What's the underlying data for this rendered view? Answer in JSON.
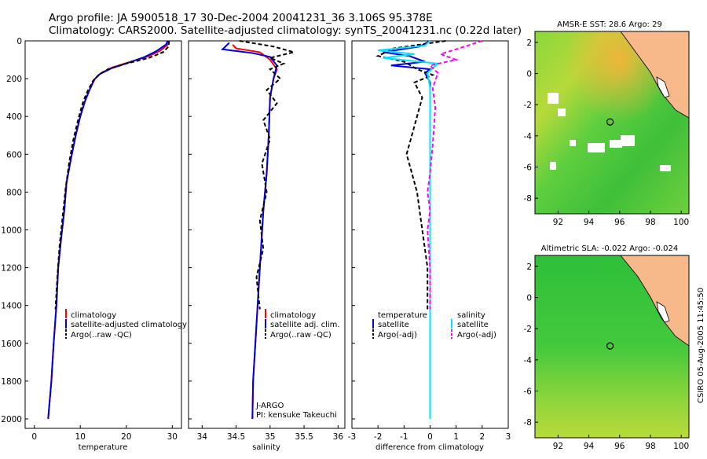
{
  "header": {
    "title_line1": "Argo profile: JA 5900518_17 30-Dec-2004 20041231_36 3.106S 95.378E",
    "title_line2": "Climatology: CARS2000. Satellite-adjusted climatology: synTS_20041231.nc (0.22d later)"
  },
  "depth_axis": {
    "ticks": [
      "0",
      "200",
      "400",
      "600",
      "800",
      "1000",
      "1200",
      "1400",
      "1600",
      "1800",
      "2000"
    ],
    "range": [
      0,
      2050
    ]
  },
  "panels": {
    "temperature": {
      "xlabel": "temperature",
      "xticks": [
        "0",
        "10",
        "20",
        "30"
      ],
      "legend": [
        "climatology",
        "satellite-adjusted climatology",
        "Argo(..raw -QC)"
      ]
    },
    "salinity": {
      "xlabel": "salinity",
      "xticks": [
        "34",
        "34.5",
        "35",
        "35.5",
        "36"
      ],
      "legend": [
        "climatology",
        "satellite adj. clim.",
        "Argo(..raw -QC)"
      ],
      "note1": "J-ARGO",
      "note2": "PI: kensuke Takeuchi"
    },
    "difference": {
      "xlabel": "difference from climatology",
      "xticks": [
        "-3",
        "-2",
        "-1",
        "0",
        "1",
        "2",
        "3"
      ],
      "legend_left_title": "temperature",
      "legend_left": [
        "satellite",
        "Argo(-adj)"
      ],
      "legend_right_title": "salinity",
      "legend_right": [
        "satellite",
        "Argo(-adj)"
      ]
    }
  },
  "maps": {
    "sst": {
      "title": "AMSR-E SST: 28.6 Argo: 29",
      "yticks": [
        "2",
        "0",
        "-2",
        "-4",
        "-6",
        "-8"
      ],
      "xticks": [
        "92",
        "94",
        "96",
        "98",
        "100"
      ]
    },
    "sla": {
      "title": "Altimetric SLA: -0.022 Argo: -0.024",
      "yticks": [
        "2",
        "0",
        "-2",
        "-4",
        "-6",
        "-8"
      ],
      "xticks": [
        "92",
        "94",
        "96",
        "98",
        "100"
      ]
    },
    "float_position": {
      "lon": 95.378,
      "lat": -3.106
    }
  },
  "footer": {
    "stamp": "CSIRO 05-Aug-2005 11:45:50"
  },
  "colors": {
    "climatology": "#ff0000",
    "satellite": "#0000dd",
    "argo": "#000000",
    "sal_satellite": "#00e5ff",
    "sal_argo": "#ff00ff",
    "land": "#f7b98a"
  },
  "chart_data": [
    {
      "type": "line",
      "panel": "temperature",
      "xlabel": "temperature",
      "xlim": [
        -2,
        32
      ],
      "ylim": [
        2050,
        0
      ],
      "series": [
        {
          "name": "climatology",
          "points": [
            [
              29.2,
              0
            ],
            [
              29.0,
              20
            ],
            [
              27.5,
              50
            ],
            [
              25,
              80
            ],
            [
              21,
              110
            ],
            [
              17,
              140
            ],
            [
              14.5,
              170
            ],
            [
              13.2,
              200
            ],
            [
              12,
              260
            ],
            [
              11,
              320
            ],
            [
              10,
              400
            ],
            [
              9,
              500
            ],
            [
              8,
              620
            ],
            [
              7,
              750
            ],
            [
              6.5,
              900
            ],
            [
              5.8,
              1050
            ],
            [
              5.2,
              1200
            ],
            [
              4.8,
              1400
            ],
            [
              4.2,
              1600
            ],
            [
              3.7,
              1800
            ],
            [
              3.0,
              2000
            ]
          ]
        },
        {
          "name": "satellite-adjusted climatology",
          "points": [
            [
              29.0,
              0
            ],
            [
              28.6,
              20
            ],
            [
              26.5,
              55
            ],
            [
              24,
              85
            ],
            [
              20.5,
              115
            ],
            [
              16.8,
              145
            ],
            [
              14.3,
              175
            ],
            [
              13.0,
              205
            ],
            [
              12,
              260
            ],
            [
              11,
              320
            ],
            [
              10,
              400
            ],
            [
              9,
              500
            ],
            [
              8,
              620
            ],
            [
              7,
              750
            ],
            [
              6.5,
              900
            ],
            [
              5.8,
              1050
            ],
            [
              5.2,
              1200
            ],
            [
              4.8,
              1400
            ],
            [
              4.2,
              1600
            ],
            [
              3.7,
              1800
            ],
            [
              3.0,
              2000
            ]
          ]
        },
        {
          "name": "Argo(..raw -QC)",
          "points": [
            [
              29.3,
              0
            ],
            [
              29.2,
              30
            ],
            [
              28,
              60
            ],
            [
              25,
              90
            ],
            [
              20,
              120
            ],
            [
              16,
              150
            ],
            [
              14,
              180
            ],
            [
              12.8,
              210
            ],
            [
              11.5,
              270
            ],
            [
              10.5,
              330
            ],
            [
              9.5,
              420
            ],
            [
              8.5,
              520
            ],
            [
              7.6,
              640
            ],
            [
              6.8,
              780
            ],
            [
              6.2,
              920
            ],
            [
              5.5,
              1080
            ],
            [
              5.0,
              1250
            ],
            [
              4.6,
              1420
            ]
          ]
        }
      ]
    },
    {
      "type": "line",
      "panel": "salinity",
      "xlabel": "salinity",
      "xlim": [
        33.8,
        36.1
      ],
      "ylim": [
        2050,
        0
      ],
      "series": [
        {
          "name": "climatology",
          "points": [
            [
              34.45,
              20
            ],
            [
              34.5,
              40
            ],
            [
              34.85,
              60
            ],
            [
              35.0,
              100
            ],
            [
              35.1,
              150
            ],
            [
              35.05,
              200
            ],
            [
              35.0,
              300
            ],
            [
              34.98,
              500
            ],
            [
              34.95,
              700
            ],
            [
              34.9,
              900
            ],
            [
              34.85,
              1200
            ],
            [
              34.8,
              1500
            ],
            [
              34.75,
              1800
            ],
            [
              34.74,
              2000
            ]
          ]
        },
        {
          "name": "satellite adj. clim.",
          "points": [
            [
              34.4,
              10
            ],
            [
              34.3,
              45
            ],
            [
              34.75,
              65
            ],
            [
              35.0,
              85
            ],
            [
              35.1,
              130
            ],
            [
              35.05,
              200
            ],
            [
              35.0,
              300
            ],
            [
              34.98,
              500
            ],
            [
              34.95,
              700
            ],
            [
              34.9,
              900
            ],
            [
              34.85,
              1200
            ],
            [
              34.8,
              1500
            ],
            [
              34.75,
              1800
            ],
            [
              34.74,
              2000
            ]
          ]
        },
        {
          "name": "Argo(..raw -QC)",
          "points": [
            [
              34.55,
              0
            ],
            [
              35.05,
              30
            ],
            [
              35.35,
              60
            ],
            [
              35.0,
              90
            ],
            [
              35.2,
              120
            ],
            [
              35.0,
              150
            ],
            [
              35.15,
              200
            ],
            [
              34.95,
              260
            ],
            [
              35.1,
              330
            ],
            [
              34.9,
              420
            ],
            [
              35.0,
              520
            ],
            [
              34.88,
              650
            ],
            [
              34.95,
              800
            ],
            [
              34.85,
              950
            ],
            [
              34.9,
              1100
            ],
            [
              34.8,
              1250
            ],
            [
              34.85,
              1420
            ]
          ]
        }
      ]
    },
    {
      "type": "line",
      "panel": "difference",
      "xlabel": "difference from climatology",
      "xlim": [
        -3,
        3
      ],
      "ylim": [
        2050,
        0
      ],
      "series": [
        {
          "name": "temperature satellite",
          "points": [
            [
              0,
              0
            ],
            [
              -0.4,
              30
            ],
            [
              -1.8,
              60
            ],
            [
              -0.8,
              80
            ],
            [
              -0.2,
              110
            ],
            [
              -1.5,
              130
            ],
            [
              0,
              150
            ],
            [
              -0.2,
              170
            ],
            [
              0,
              220
            ],
            [
              0,
              500
            ],
            [
              0,
              1000
            ],
            [
              0,
              1500
            ],
            [
              0,
              2000
            ]
          ]
        },
        {
          "name": "temperature Argo(-adj)",
          "points": [
            [
              0.6,
              0
            ],
            [
              -1.4,
              40
            ],
            [
              -2.0,
              80
            ],
            [
              -1.0,
              110
            ],
            [
              -0.5,
              150
            ],
            [
              0.1,
              180
            ],
            [
              -0.6,
              220
            ],
            [
              -0.3,
              300
            ],
            [
              -0.5,
              400
            ],
            [
              -0.7,
              500
            ],
            [
              -0.9,
              600
            ],
            [
              -0.7,
              700
            ],
            [
              -0.5,
              800
            ],
            [
              -0.4,
              900
            ],
            [
              -0.3,
              1000
            ],
            [
              -0.2,
              1100
            ],
            [
              -0.1,
              1200
            ],
            [
              -0.1,
              1420
            ]
          ]
        },
        {
          "name": "salinity satellite",
          "points": [
            [
              0,
              0
            ],
            [
              -0.2,
              25
            ],
            [
              -2.0,
              50
            ],
            [
              -0.6,
              70
            ],
            [
              -1.8,
              90
            ],
            [
              0.3,
              120
            ],
            [
              -0.1,
              170
            ],
            [
              0,
              250
            ],
            [
              0,
              500
            ],
            [
              0,
              1000
            ],
            [
              0,
              1500
            ],
            [
              0,
              2000
            ]
          ]
        },
        {
          "name": "salinity Argo(-adj)",
          "points": [
            [
              2.0,
              0
            ],
            [
              1.1,
              40
            ],
            [
              0.4,
              70
            ],
            [
              1.0,
              100
            ],
            [
              0,
              130
            ],
            [
              0.3,
              170
            ],
            [
              0.1,
              250
            ],
            [
              0.2,
              350
            ],
            [
              0.15,
              450
            ],
            [
              0.1,
              550
            ],
            [
              0,
              700
            ],
            [
              -0.1,
              800
            ],
            [
              0,
              900
            ],
            [
              -0.1,
              1000
            ],
            [
              -0.05,
              1100
            ],
            [
              0,
              1200
            ],
            [
              0,
              1420
            ]
          ]
        }
      ]
    },
    {
      "type": "heatmap",
      "panel": "sst_map",
      "title": "AMSR-E SST: 28.6 Argo: 29",
      "xlim": [
        90.5,
        100.5
      ],
      "ylim": [
        -9,
        2.7
      ],
      "float": [
        95.378,
        -3.106
      ]
    },
    {
      "type": "heatmap",
      "panel": "sla_map",
      "title": "Altimetric SLA: -0.022 Argo: -0.024",
      "xlim": [
        90.5,
        100.5
      ],
      "ylim": [
        -9,
        2.7
      ],
      "float": [
        95.378,
        -3.106
      ]
    }
  ]
}
